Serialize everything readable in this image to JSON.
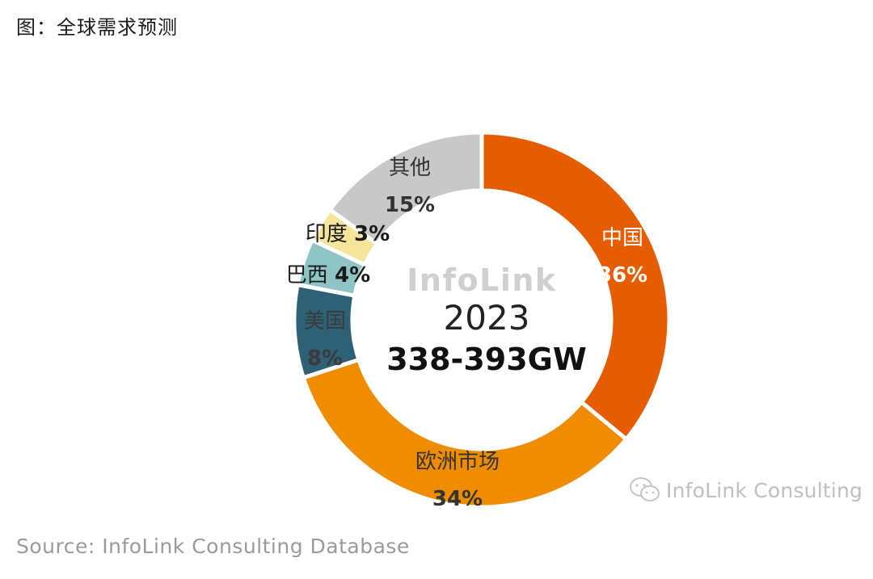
{
  "title": "图：全球需求预测",
  "source": "Source: InfoLink Consulting Database",
  "wechat_text": "InfoLink Consulting",
  "chart_data": {
    "type": "pie",
    "center": {
      "watermark": "InfoLink",
      "year": "2023",
      "value": "338-393GW"
    },
    "slices": [
      {
        "name": "中国",
        "pct_label": "36%",
        "value": 36,
        "color": "#e55d00",
        "text_color": "#ffffff"
      },
      {
        "name": "欧洲市场",
        "pct_label": "34%",
        "value": 34,
        "color": "#ef8c00",
        "text_color": "#333333"
      },
      {
        "name": "美国",
        "pct_label": "8%",
        "value": 8,
        "color": "#2e6175",
        "text_color": "#3a3a3a"
      },
      {
        "name": "巴西",
        "pct_label": "4%",
        "value": 4,
        "color": "#8ec4c3",
        "text_color": "#1a1a1a"
      },
      {
        "name": "印度",
        "pct_label": "3%",
        "value": 3,
        "color": "#f5e49a",
        "text_color": "#1a1a1a"
      },
      {
        "name": "其他",
        "pct_label": "15%",
        "value": 15,
        "color": "#c8c8c8",
        "text_color": "#333333"
      }
    ]
  }
}
